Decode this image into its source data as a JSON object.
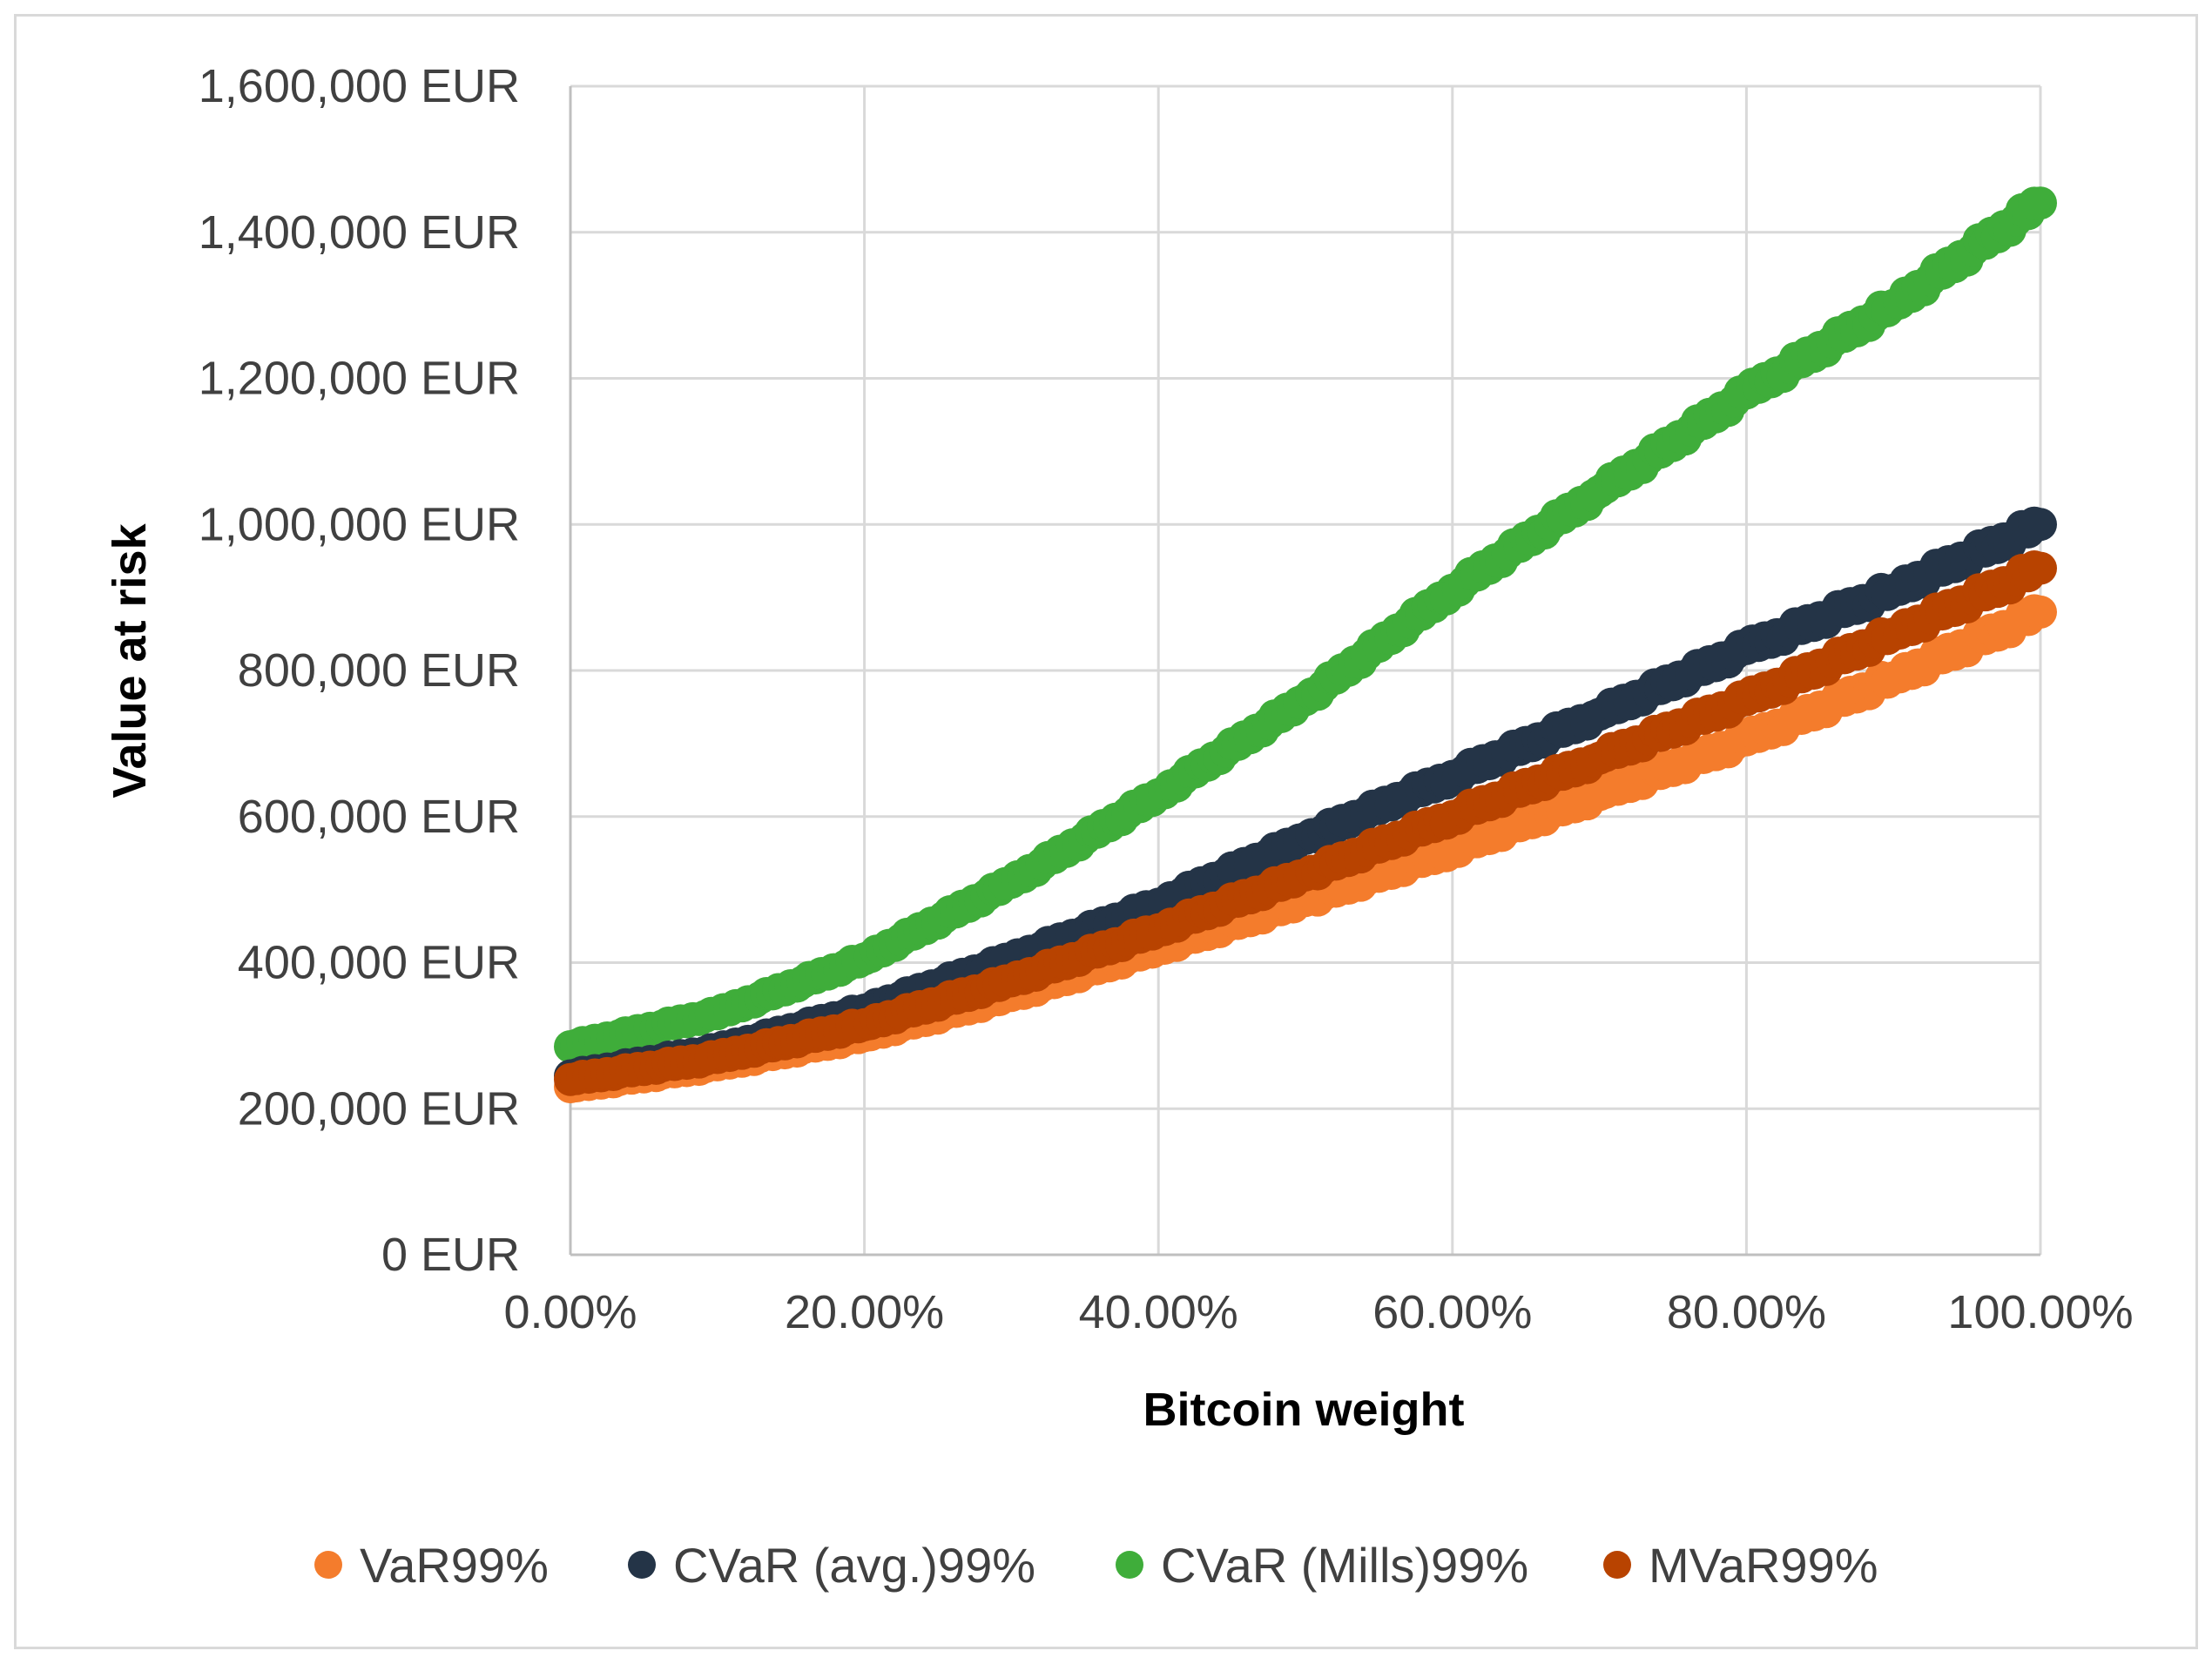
{
  "chart_data": {
    "type": "scatter",
    "xlabel": "Bitcoin weight",
    "ylabel": "Value at risk",
    "xlim": [
      0,
      1
    ],
    "ylim": [
      0,
      1600000
    ],
    "x_ticks": [
      "0.00%",
      "20.00%",
      "40.00%",
      "60.00%",
      "80.00%",
      "100.00%"
    ],
    "y_ticks": [
      "0 EUR",
      "200,000 EUR",
      "400,000 EUR",
      "600,000 EUR",
      "800,000 EUR",
      "1,000,000 EUR",
      "1,200,000 EUR",
      "1,400,000 EUR",
      "1,600,000 EUR"
    ],
    "grid": true,
    "legend_position": "bottom",
    "x": [
      0.0,
      0.1,
      0.2,
      0.3,
      0.4,
      0.5,
      0.6,
      0.7,
      0.8,
      0.9,
      1.0
    ],
    "series": [
      {
        "name": "VaR99%",
        "color": "#f47c2c",
        "values": [
          230000,
          260000,
          300000,
          355000,
          420000,
          485000,
          555000,
          630000,
          705000,
          790000,
          880000
        ]
      },
      {
        "name": "CVaR (avg.)99%",
        "color": "#243447",
        "values": [
          245000,
          280000,
          335000,
          405000,
          480000,
          570000,
          655000,
          740000,
          830000,
          910000,
          1000000
        ]
      },
      {
        "name": "CVaR (Mills)99%",
        "color": "#3fad3a",
        "values": [
          285000,
          330000,
          405000,
          510000,
          630000,
          760000,
          910000,
          1045000,
          1180000,
          1300000,
          1440000
        ]
      },
      {
        "name": "MVaR99%",
        "color": "#b84300",
        "values": [
          240000,
          270000,
          315000,
          375000,
          445000,
          520000,
          600000,
          680000,
          760000,
          850000,
          940000
        ]
      }
    ]
  }
}
